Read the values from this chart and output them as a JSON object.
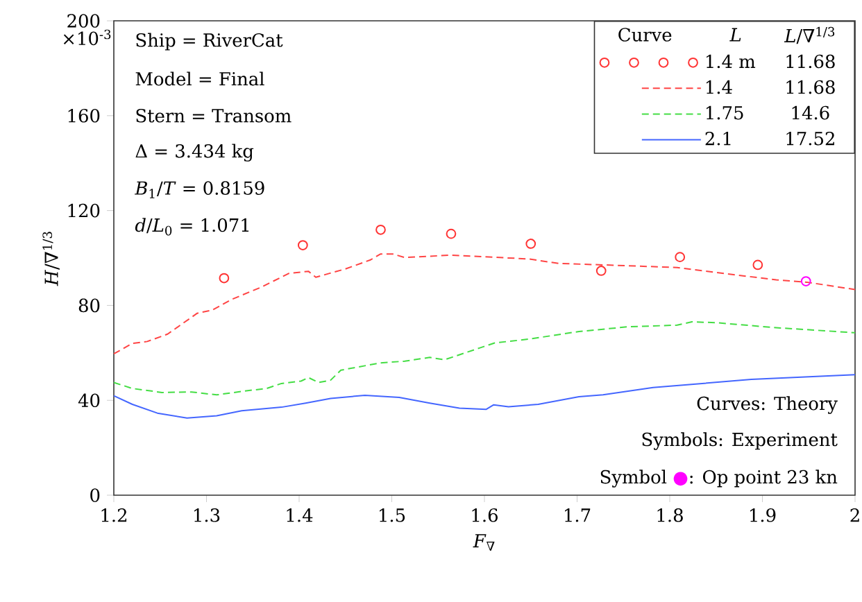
{
  "chart_data": {
    "type": "line",
    "xlabel": "*F*$_{∇}$",
    "ylabel": "*H*/∇$^{1/3}$",
    "xlim": [
      1.2,
      2.0
    ],
    "xticks": [
      1.2,
      1.3,
      1.4,
      1.5,
      1.6,
      1.7,
      1.8,
      1.9,
      2
    ],
    "ylim": [
      0,
      200
    ],
    "yticks": [
      0,
      40,
      80,
      120,
      160,
      200
    ],
    "legend": "top right",
    "series": [
      {
        "name": "1.4 m",
        "type": "scatter",
        "marker": "circle",
        "color": "#ff3333",
        "x": [
          1.319,
          1.404,
          1.488,
          1.564,
          1.65,
          1.726,
          1.811,
          1.895
        ],
        "values": [
          91.5,
          105.4,
          111.9,
          110.2,
          106.0,
          94.6,
          100.4,
          97.1
        ]
      },
      {
        "name": "1.4",
        "line_style": "dashed",
        "color": "#ff4444",
        "x": [
          1.2,
          1.22,
          1.236,
          1.258,
          1.29,
          1.306,
          1.327,
          1.359,
          1.389,
          1.41,
          1.418,
          1.45,
          1.477,
          1.488,
          1.501,
          1.514,
          1.563,
          1.648,
          1.68,
          1.728,
          1.808,
          1.862,
          1.915,
          1.948,
          2.0
        ],
        "values": [
          59.6,
          64,
          64.8,
          67.9,
          76.7,
          78,
          82.5,
          87.7,
          93.5,
          94.4,
          91.9,
          95.4,
          99.2,
          101.7,
          101.7,
          100.2,
          101.2,
          99.6,
          97.7,
          97.1,
          96,
          93.3,
          90.8,
          89.8,
          86.7
        ]
      },
      {
        "name": "1.75",
        "line_style": "dashed",
        "color": "#44dd44",
        "x": [
          1.2,
          1.22,
          1.252,
          1.284,
          1.311,
          1.343,
          1.365,
          1.381,
          1.402,
          1.41,
          1.421,
          1.434,
          1.445,
          1.488,
          1.514,
          1.541,
          1.557,
          1.595,
          1.611,
          1.648,
          1.702,
          1.755,
          1.808,
          1.824,
          1.851,
          1.915,
          2.0
        ],
        "values": [
          47.5,
          45,
          43.3,
          43.5,
          42.3,
          44,
          45,
          47.1,
          48.1,
          49.6,
          47.5,
          48.5,
          52.7,
          55.8,
          56.5,
          58.1,
          57.1,
          62.1,
          64.2,
          65.8,
          69,
          71,
          71.7,
          73.1,
          72.7,
          70.6,
          68.5
        ]
      },
      {
        "name": "2.1",
        "line_style": "solid",
        "color": "#4466ff",
        "x": [
          1.2,
          1.22,
          1.247,
          1.279,
          1.311,
          1.338,
          1.381,
          1.407,
          1.434,
          1.471,
          1.508,
          1.541,
          1.573,
          1.602,
          1.61,
          1.626,
          1.658,
          1.702,
          1.728,
          1.782,
          1.835,
          1.888,
          1.942,
          2.0
        ],
        "values": [
          41.9,
          38.3,
          34.6,
          32.5,
          33.5,
          35.6,
          37.1,
          38.8,
          40.8,
          42.1,
          41.2,
          38.8,
          36.7,
          36.2,
          38.1,
          37.3,
          38.3,
          41.5,
          42.3,
          45.4,
          47.1,
          48.8,
          49.8,
          50.8
        ]
      },
      {
        "type": "scatter",
        "marker": "circle",
        "color": "#ff00ff",
        "x": [
          1.947
        ],
        "values": [
          90.2
        ]
      }
    ],
    "annotations": [
      "×10$^{-3}$",
      "Ship = RiverCat",
      "Model = Final",
      "Stern = Transom",
      "Δ = 3.434 kg",
      "*B*$_{1}$/*T* = 0.8159",
      "*d*/*L*$_{0}$ = 1.071",
      "Curves: Theory",
      "Symbols: Experiment",
      "Symbol",
      "●",
      ": Op point 23 kn",
      "Curve",
      "*L*",
      "*L*/∇$^{1/3}$",
      "11.68",
      "11.68",
      "14.6",
      "17.52"
    ]
  }
}
